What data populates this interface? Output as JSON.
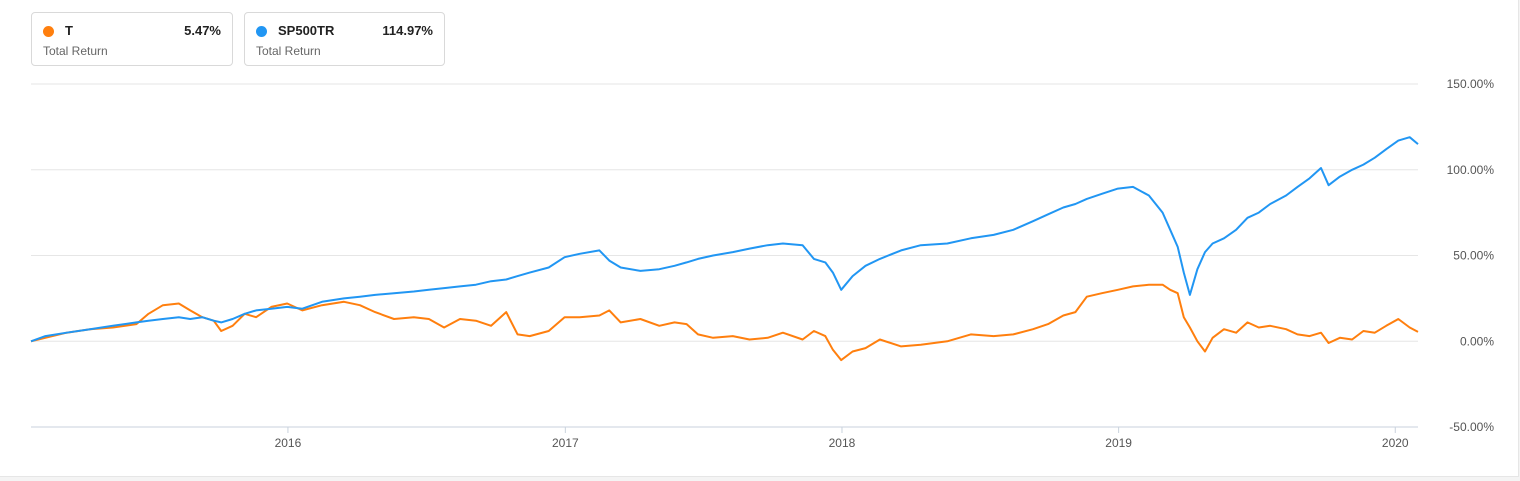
{
  "legend": [
    {
      "symbol": "T",
      "value": "5.47%",
      "label": "Total Return",
      "color": "#ff7f0e"
    },
    {
      "symbol": "SP500TR",
      "value": "114.97%",
      "label": "Total Return",
      "color": "#2196f3"
    }
  ],
  "chart_data": {
    "type": "line",
    "title": "",
    "xlabel": "",
    "ylabel": "",
    "x_range": [
      "2015-01-27",
      "2020-01-31"
    ],
    "ylim": [
      -50,
      150
    ],
    "y_ticks": [
      "150.00%",
      "100.00%",
      "50.00%",
      "0.00%",
      "-50.00%"
    ],
    "y_tick_values": [
      150,
      100,
      50,
      0,
      -50
    ],
    "x_ticks": [
      "2016",
      "2017",
      "2018",
      "2019",
      "2020"
    ],
    "x_tick_dates": [
      "2016-01-01",
      "2017-01-01",
      "2018-01-01",
      "2019-01-01",
      "2020-01-01"
    ],
    "grid": "horizontal",
    "y_axis_position": "right",
    "series": [
      {
        "name": "T",
        "color": "#ff7f0e",
        "points": [
          [
            "2015-01-27",
            0
          ],
          [
            "2015-02-15",
            2
          ],
          [
            "2015-03-15",
            5
          ],
          [
            "2015-04-15",
            7
          ],
          [
            "2015-05-15",
            8
          ],
          [
            "2015-06-15",
            10
          ],
          [
            "2015-07-01",
            16
          ],
          [
            "2015-07-20",
            21
          ],
          [
            "2015-08-10",
            22
          ],
          [
            "2015-08-25",
            18
          ],
          [
            "2015-09-10",
            14
          ],
          [
            "2015-09-25",
            12
          ],
          [
            "2015-10-05",
            6
          ],
          [
            "2015-10-20",
            9
          ],
          [
            "2015-11-05",
            16
          ],
          [
            "2015-11-20",
            14
          ],
          [
            "2015-12-10",
            20
          ],
          [
            "2015-12-31",
            22
          ],
          [
            "2016-01-20",
            18
          ],
          [
            "2016-02-15",
            21
          ],
          [
            "2016-03-15",
            23
          ],
          [
            "2016-04-05",
            21
          ],
          [
            "2016-04-25",
            17
          ],
          [
            "2016-05-20",
            13
          ],
          [
            "2016-06-15",
            14
          ],
          [
            "2016-07-05",
            13
          ],
          [
            "2016-07-25",
            8
          ],
          [
            "2016-08-15",
            13
          ],
          [
            "2016-09-05",
            12
          ],
          [
            "2016-09-25",
            9
          ],
          [
            "2016-10-15",
            17
          ],
          [
            "2016-10-30",
            4
          ],
          [
            "2016-11-15",
            3
          ],
          [
            "2016-12-10",
            6
          ],
          [
            "2016-12-31",
            14
          ],
          [
            "2017-01-20",
            14
          ],
          [
            "2017-02-15",
            15
          ],
          [
            "2017-02-28",
            18
          ],
          [
            "2017-03-15",
            11
          ],
          [
            "2017-04-10",
            13
          ],
          [
            "2017-05-05",
            9
          ],
          [
            "2017-05-25",
            11
          ],
          [
            "2017-06-10",
            10
          ],
          [
            "2017-06-25",
            4
          ],
          [
            "2017-07-15",
            2
          ],
          [
            "2017-08-10",
            3
          ],
          [
            "2017-09-01",
            1
          ],
          [
            "2017-09-25",
            2
          ],
          [
            "2017-10-15",
            5
          ],
          [
            "2017-11-10",
            1
          ],
          [
            "2017-11-25",
            6
          ],
          [
            "2017-12-10",
            3
          ],
          [
            "2017-12-20",
            -5
          ],
          [
            "2017-12-31",
            -11
          ],
          [
            "2018-01-15",
            -6
          ],
          [
            "2018-02-01",
            -4
          ],
          [
            "2018-02-20",
            1
          ],
          [
            "2018-03-20",
            -3
          ],
          [
            "2018-04-15",
            -2
          ],
          [
            "2018-05-20",
            0
          ],
          [
            "2018-06-20",
            4
          ],
          [
            "2018-07-20",
            3
          ],
          [
            "2018-08-15",
            4
          ],
          [
            "2018-09-10",
            7
          ],
          [
            "2018-09-30",
            10
          ],
          [
            "2018-10-20",
            15
          ],
          [
            "2018-11-05",
            17
          ],
          [
            "2018-11-20",
            26
          ],
          [
            "2018-12-10",
            28
          ],
          [
            "2018-12-31",
            30
          ],
          [
            "2019-01-20",
            32
          ],
          [
            "2019-02-10",
            33
          ],
          [
            "2019-02-28",
            33
          ],
          [
            "2019-03-10",
            30
          ],
          [
            "2019-03-20",
            28
          ],
          [
            "2019-03-28",
            14
          ],
          [
            "2019-04-05",
            8
          ],
          [
            "2019-04-15",
            0
          ],
          [
            "2019-04-25",
            -6
          ],
          [
            "2019-05-05",
            2
          ],
          [
            "2019-05-20",
            7
          ],
          [
            "2019-06-05",
            5
          ],
          [
            "2019-06-20",
            11
          ],
          [
            "2019-07-05",
            8
          ],
          [
            "2019-07-20",
            9
          ],
          [
            "2019-08-10",
            7
          ],
          [
            "2019-08-25",
            4
          ],
          [
            "2019-09-10",
            3
          ],
          [
            "2019-09-25",
            5
          ],
          [
            "2019-10-05",
            -1
          ],
          [
            "2019-10-20",
            2
          ],
          [
            "2019-11-05",
            1
          ],
          [
            "2019-11-20",
            6
          ],
          [
            "2019-12-05",
            5
          ],
          [
            "2019-12-20",
            9
          ],
          [
            "2020-01-05",
            13
          ],
          [
            "2020-01-20",
            8
          ],
          [
            "2020-01-31",
            5.47
          ]
        ]
      },
      {
        "name": "SP500TR",
        "color": "#2196f3",
        "points": [
          [
            "2015-01-27",
            0
          ],
          [
            "2015-02-15",
            3
          ],
          [
            "2015-03-15",
            5
          ],
          [
            "2015-04-15",
            7
          ],
          [
            "2015-05-15",
            9
          ],
          [
            "2015-06-15",
            11
          ],
          [
            "2015-07-01",
            12
          ],
          [
            "2015-07-20",
            13
          ],
          [
            "2015-08-10",
            14
          ],
          [
            "2015-08-25",
            13
          ],
          [
            "2015-09-10",
            14
          ],
          [
            "2015-09-25",
            12
          ],
          [
            "2015-10-05",
            11
          ],
          [
            "2015-10-20",
            13
          ],
          [
            "2015-11-05",
            16
          ],
          [
            "2015-11-20",
            18
          ],
          [
            "2015-12-10",
            19
          ],
          [
            "2015-12-31",
            20
          ],
          [
            "2016-01-20",
            19
          ],
          [
            "2016-02-15",
            23
          ],
          [
            "2016-03-15",
            25
          ],
          [
            "2016-04-05",
            26
          ],
          [
            "2016-04-25",
            27
          ],
          [
            "2016-05-20",
            28
          ],
          [
            "2016-06-15",
            29
          ],
          [
            "2016-07-05",
            30
          ],
          [
            "2016-07-25",
            31
          ],
          [
            "2016-08-15",
            32
          ],
          [
            "2016-09-05",
            33
          ],
          [
            "2016-09-25",
            35
          ],
          [
            "2016-10-15",
            36
          ],
          [
            "2016-10-30",
            38
          ],
          [
            "2016-11-15",
            40
          ],
          [
            "2016-12-10",
            43
          ],
          [
            "2016-12-31",
            49
          ],
          [
            "2017-01-20",
            51
          ],
          [
            "2017-02-15",
            53
          ],
          [
            "2017-02-28",
            47
          ],
          [
            "2017-03-15",
            43
          ],
          [
            "2017-04-10",
            41
          ],
          [
            "2017-05-05",
            42
          ],
          [
            "2017-05-25",
            44
          ],
          [
            "2017-06-10",
            46
          ],
          [
            "2017-06-25",
            48
          ],
          [
            "2017-07-15",
            50
          ],
          [
            "2017-08-10",
            52
          ],
          [
            "2017-09-01",
            54
          ],
          [
            "2017-09-25",
            56
          ],
          [
            "2017-10-15",
            57
          ],
          [
            "2017-11-10",
            56
          ],
          [
            "2017-11-25",
            48
          ],
          [
            "2017-12-10",
            46
          ],
          [
            "2017-12-20",
            40
          ],
          [
            "2017-12-31",
            30
          ],
          [
            "2018-01-15",
            38
          ],
          [
            "2018-02-01",
            44
          ],
          [
            "2018-02-20",
            48
          ],
          [
            "2018-03-20",
            53
          ],
          [
            "2018-04-15",
            56
          ],
          [
            "2018-05-20",
            57
          ],
          [
            "2018-06-20",
            60
          ],
          [
            "2018-07-20",
            62
          ],
          [
            "2018-08-15",
            65
          ],
          [
            "2018-09-10",
            70
          ],
          [
            "2018-09-30",
            74
          ],
          [
            "2018-10-20",
            78
          ],
          [
            "2018-11-05",
            80
          ],
          [
            "2018-11-20",
            83
          ],
          [
            "2018-12-10",
            86
          ],
          [
            "2018-12-31",
            89
          ],
          [
            "2019-01-20",
            90
          ],
          [
            "2019-02-10",
            85
          ],
          [
            "2019-02-28",
            75
          ],
          [
            "2019-03-10",
            65
          ],
          [
            "2019-03-20",
            55
          ],
          [
            "2019-03-28",
            40
          ],
          [
            "2019-04-05",
            27
          ],
          [
            "2019-04-15",
            42
          ],
          [
            "2019-04-25",
            52
          ],
          [
            "2019-05-05",
            57
          ],
          [
            "2019-05-20",
            60
          ],
          [
            "2019-06-05",
            65
          ],
          [
            "2019-06-20",
            72
          ],
          [
            "2019-07-05",
            75
          ],
          [
            "2019-07-20",
            80
          ],
          [
            "2019-08-10",
            85
          ],
          [
            "2019-08-25",
            90
          ],
          [
            "2019-09-10",
            95
          ],
          [
            "2019-09-25",
            101
          ],
          [
            "2019-10-05",
            91
          ],
          [
            "2019-10-20",
            96
          ],
          [
            "2019-11-05",
            100
          ],
          [
            "2019-11-20",
            103
          ],
          [
            "2019-12-05",
            107
          ],
          [
            "2019-12-20",
            112
          ],
          [
            "2020-01-05",
            117
          ],
          [
            "2020-01-20",
            119
          ],
          [
            "2020-01-31",
            114.97
          ]
        ]
      }
    ]
  }
}
